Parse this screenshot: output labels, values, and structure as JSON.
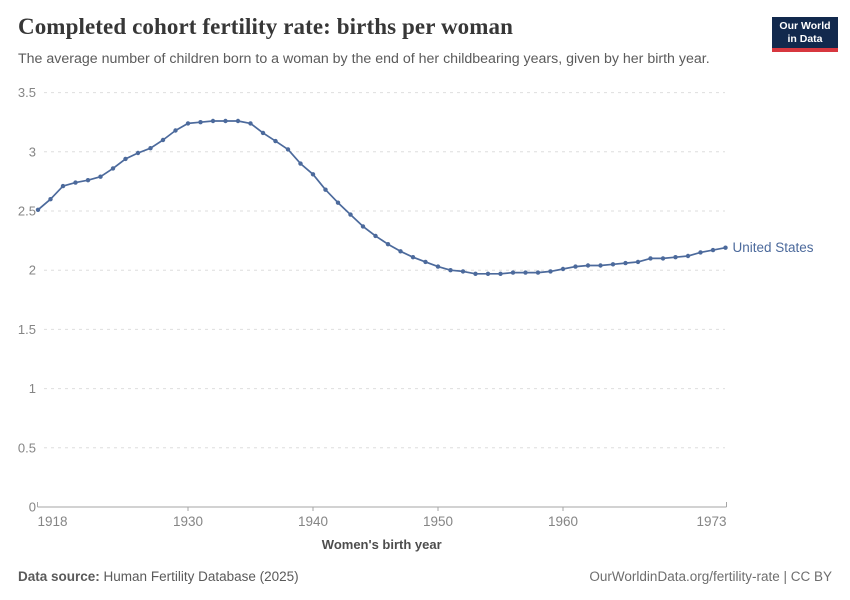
{
  "header": {
    "title": "Completed cohort fertility rate: births per woman",
    "subtitle": "The average number of children born to a woman by the end of her childbearing years, given by her birth year.",
    "logo": {
      "line1": "Our World",
      "line2": "in Data",
      "bg_color": "#12294d",
      "accent_color": "#d7373f"
    }
  },
  "chart_data": {
    "type": "line",
    "title": "Completed cohort fertility rate: births per woman",
    "xlabel": "Women's birth year",
    "ylabel": "",
    "xlim": [
      1918,
      1973
    ],
    "ylim": [
      0,
      3.5
    ],
    "x_ticks": [
      1918,
      1930,
      1940,
      1950,
      1960,
      1973
    ],
    "y_ticks": [
      0,
      0.5,
      1,
      1.5,
      2,
      2.5,
      3,
      3.5
    ],
    "grid": "horizontal-dashed",
    "legend_position": "end-of-line",
    "series": [
      {
        "name": "United States",
        "color": "#4C6A9C",
        "x": [
          1918,
          1919,
          1920,
          1921,
          1922,
          1923,
          1924,
          1925,
          1926,
          1927,
          1928,
          1929,
          1930,
          1931,
          1932,
          1933,
          1934,
          1935,
          1936,
          1937,
          1938,
          1939,
          1940,
          1941,
          1942,
          1943,
          1944,
          1945,
          1946,
          1947,
          1948,
          1949,
          1950,
          1951,
          1952,
          1953,
          1954,
          1955,
          1956,
          1957,
          1958,
          1959,
          1960,
          1961,
          1962,
          1963,
          1964,
          1965,
          1966,
          1967,
          1968,
          1969,
          1970,
          1971,
          1972,
          1973
        ],
        "values": [
          2.51,
          2.6,
          2.71,
          2.74,
          2.76,
          2.79,
          2.86,
          2.94,
          2.99,
          3.03,
          3.1,
          3.18,
          3.24,
          3.25,
          3.26,
          3.26,
          3.26,
          3.24,
          3.16,
          3.09,
          3.02,
          2.9,
          2.81,
          2.68,
          2.57,
          2.47,
          2.37,
          2.29,
          2.22,
          2.16,
          2.11,
          2.07,
          2.03,
          2.0,
          1.99,
          1.97,
          1.97,
          1.97,
          1.98,
          1.98,
          1.98,
          1.99,
          2.01,
          2.03,
          2.04,
          2.04,
          2.05,
          2.06,
          2.07,
          2.1,
          2.1,
          2.11,
          2.12,
          2.15,
          2.17,
          2.19
        ]
      }
    ],
    "colors": {
      "grid": "#dedede",
      "axis": "#a6a6a6",
      "tick_label": "#858585",
      "axis_title": "#4d4d4d"
    }
  },
  "footer": {
    "source_label": "Data source:",
    "source_value": "Human Fertility Database (2025)",
    "credit": "OurWorldinData.org/fertility-rate | CC BY"
  }
}
